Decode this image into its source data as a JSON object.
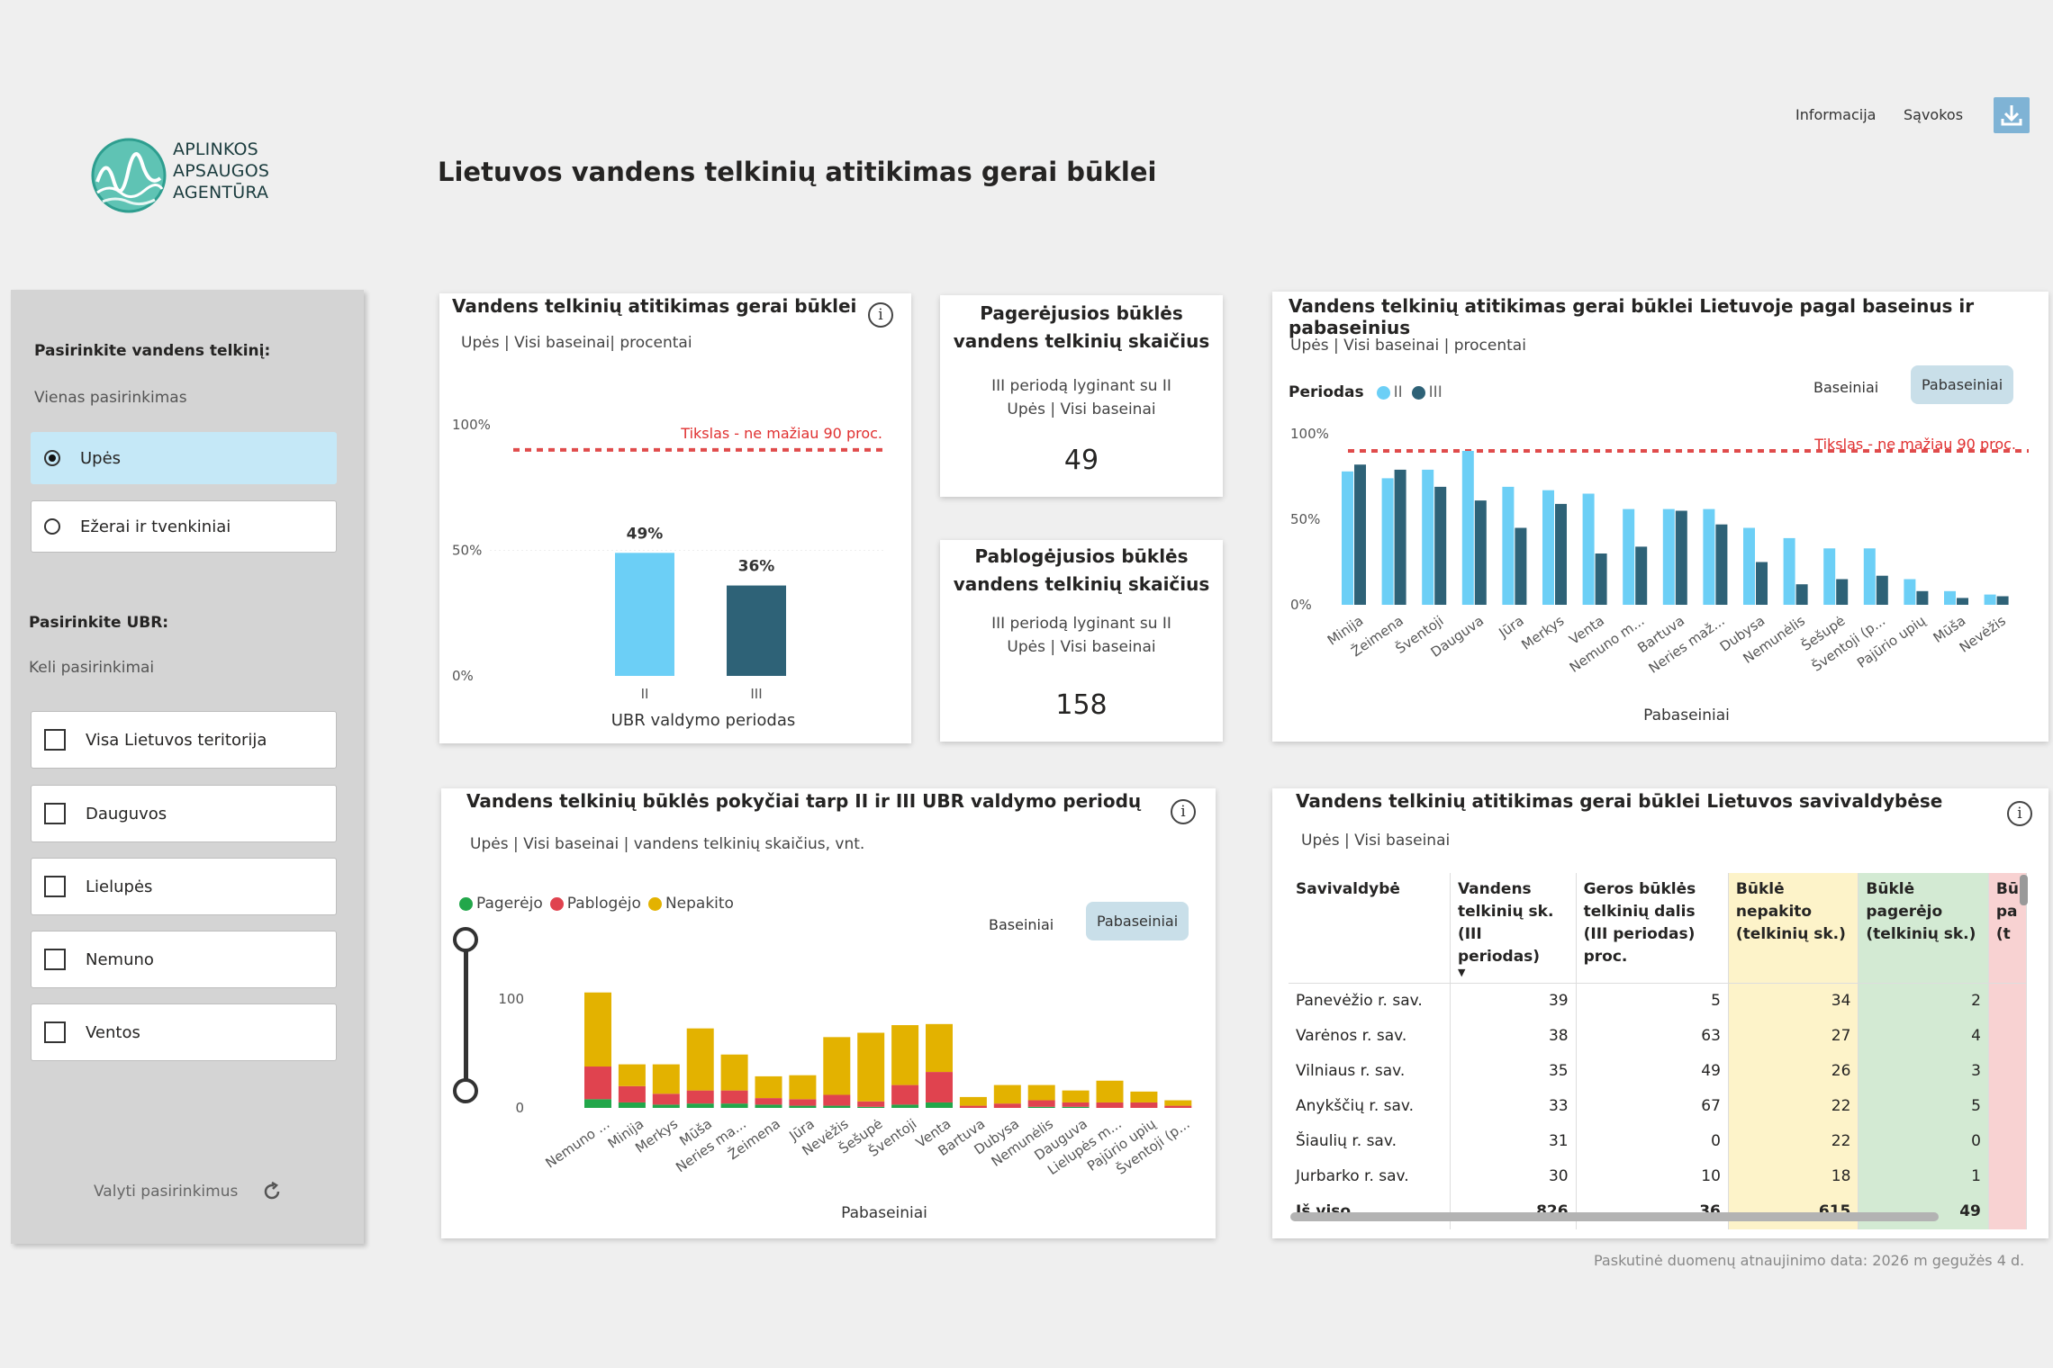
{
  "logo": {
    "line1": "APLINKOS",
    "line2": "APSAUGOS",
    "line3": "AGENTŪRA"
  },
  "page_title": "Lietuvos vandens telkinių atitikimas gerai būklei",
  "toplinks": {
    "info": "Informacija",
    "terms": "Sąvokos"
  },
  "colors": {
    "period2": "#6ccff6",
    "period3": "#2e6277",
    "target": "#e04b4b",
    "improved": "#22a74a",
    "worsened": "#e0434f",
    "unchanged": "#e3b200"
  },
  "sidebar": {
    "water_title": "Pasirinkite vandens telkinį:",
    "water_mode": "Vienas pasirinkimas",
    "water_options": [
      "Upės",
      "Ežerai ir tvenkiniai"
    ],
    "ubr_title": "Pasirinkite UBR:",
    "ubr_mode": "Keli pasirinkimai",
    "ubr_options": [
      "Visa Lietuvos teritorija",
      "Dauguvos",
      "Lielupės",
      "Nemuno",
      "Ventos"
    ],
    "reset": "Valyti pasirinkimus"
  },
  "card1": {
    "title": "Vandens telkinių atitikimas gerai būklei",
    "subtitle": "Upės | Visi baseinai| procentai",
    "target_label": "Tikslas - ne mažiau 90 proc.",
    "xlabel": "UBR valdymo periodas"
  },
  "kpi1": {
    "title1": "Pagerėjusios būklės",
    "title2": "vandens telkinių skaičius",
    "sub1": "III periodą lyginant su II",
    "sub2": "Upės | Visi baseinai",
    "value": "49"
  },
  "kpi2": {
    "title1": "Pablogėjusios būklės",
    "title2": "vandens telkinių skaičius",
    "sub1": "III periodą lyginant su II",
    "sub2": "Upės | Visi baseinai",
    "value": "158"
  },
  "card3": {
    "title": "Vandens telkinių atitikimas gerai būklei Lietuvoje pagal baseinus ir pabaseinius",
    "subtitle": "Upės | Visi baseinai | procentai",
    "legend_title": "Periodas",
    "toggle_a": "Baseiniai",
    "toggle_b": "Pabaseiniai",
    "target_label": "Tikslas - ne mažiau 90 proc.",
    "xlabel": "Pabaseiniai"
  },
  "card4": {
    "title": "Vandens telkinių būklės pokyčiai tarp II ir III UBR valdymo periodų",
    "subtitle": "Upės | Visi baseinai | vandens telkinių skaičius, vnt.",
    "toggle_a": "Baseiniai",
    "toggle_b": "Pabaseiniai",
    "xlabel": "Pabaseiniai"
  },
  "card5": {
    "title": "Vandens telkinių atitikimas gerai būklei Lietuvos savivaldybėse",
    "subtitle": "Upės | Visi baseinai",
    "headers": [
      "Savivaldybė",
      "Vandens telkinių sk. (III periodas)",
      "Geros būklės telkinių dalis (III periodas) proc.",
      "Būklė nepakito (telkinių sk.)",
      "Būklė pagerėjo (telkinių sk.)",
      "Bū pa (t"
    ],
    "rows": [
      [
        "Panevėžio r. sav.",
        "39",
        "5",
        "34",
        "2"
      ],
      [
        "Varėnos r. sav.",
        "38",
        "63",
        "27",
        "4"
      ],
      [
        "Vilniaus r. sav.",
        "35",
        "49",
        "26",
        "3"
      ],
      [
        "Anykščių r. sav.",
        "33",
        "67",
        "22",
        "5"
      ],
      [
        "Šiaulių r. sav.",
        "31",
        "0",
        "22",
        "0"
      ],
      [
        "Jurbarko r. sav.",
        "30",
        "10",
        "18",
        "1"
      ]
    ],
    "total": [
      "Iš viso",
      "826",
      "36",
      "615",
      "49"
    ]
  },
  "footer": "Paskutinė duomenų atnaujinimo data: 2026 m gegužės 4 d.",
  "chart_data": [
    {
      "type": "bar",
      "title": "Vandens telkinių atitikimas gerai būklei",
      "xlabel": "UBR valdymo periodas",
      "categories": [
        "II",
        "III"
      ],
      "values": [
        49,
        36
      ],
      "value_labels": [
        "49%",
        "36%"
      ],
      "yticks": [
        "0%",
        "50%",
        "100%"
      ],
      "ylim": [
        0,
        100
      ],
      "target": 90
    },
    {
      "type": "bar",
      "title": "Vandens telkinių atitikimas gerai būklei Lietuvoje pagal baseinus ir pabaseinius",
      "xlabel": "Pabaseiniai",
      "categories": [
        "Minija",
        "Žeimena",
        "Šventoji",
        "Dauguva",
        "Jūra",
        "Merkys",
        "Venta",
        "Nemuno m...",
        "Bartuva",
        "Neries maž...",
        "Dubysa",
        "Nemunėlis",
        "Šešupė",
        "Šventoji (p...",
        "Pajūrio upių",
        "Mūša",
        "Nevėžis"
      ],
      "series": [
        {
          "name": "II",
          "values": [
            78,
            74,
            79,
            90,
            69,
            67,
            65,
            56,
            56,
            56,
            45,
            39,
            33,
            33,
            15,
            8,
            6
          ]
        },
        {
          "name": "III",
          "values": [
            82,
            79,
            69,
            61,
            45,
            59,
            30,
            34,
            55,
            47,
            25,
            12,
            15,
            17,
            8,
            4,
            5
          ]
        }
      ],
      "yticks": [
        "0%",
        "50%",
        "100%"
      ],
      "ylim": [
        0,
        100
      ],
      "target": 90
    },
    {
      "type": "bar",
      "title": "Vandens telkinių būklės pokyčiai tarp II ir III UBR valdymo periodų",
      "xlabel": "Pabaseiniai",
      "categories": [
        "Nemuno ...",
        "Minija",
        "Merkys",
        "Mūša",
        "Neries ma...",
        "Žeimena",
        "Jūra",
        "Nevėžis",
        "Šešupė",
        "Šventoji",
        "Venta",
        "Bartuva",
        "Dubysa",
        "Nemunėlis",
        "Dauguva",
        "Lielupės m...",
        "Pajūrio upių",
        "Šventoji (p..."
      ],
      "series": [
        {
          "name": "Pagerėjo",
          "values": [
            8,
            5,
            3,
            4,
            4,
            3,
            2,
            2,
            1,
            3,
            5,
            0,
            0,
            1,
            1,
            0,
            0,
            0
          ]
        },
        {
          "name": "Pablogėjo",
          "values": [
            30,
            15,
            10,
            12,
            12,
            6,
            6,
            10,
            5,
            18,
            28,
            2,
            4,
            6,
            4,
            5,
            5,
            2
          ]
        },
        {
          "name": "Nepakito",
          "values": [
            68,
            20,
            27,
            57,
            33,
            20,
            22,
            53,
            63,
            55,
            44,
            8,
            17,
            14,
            11,
            20,
            10,
            5
          ]
        }
      ],
      "yticks": [
        "0",
        "100"
      ],
      "ylim": [
        0,
        110
      ]
    }
  ]
}
